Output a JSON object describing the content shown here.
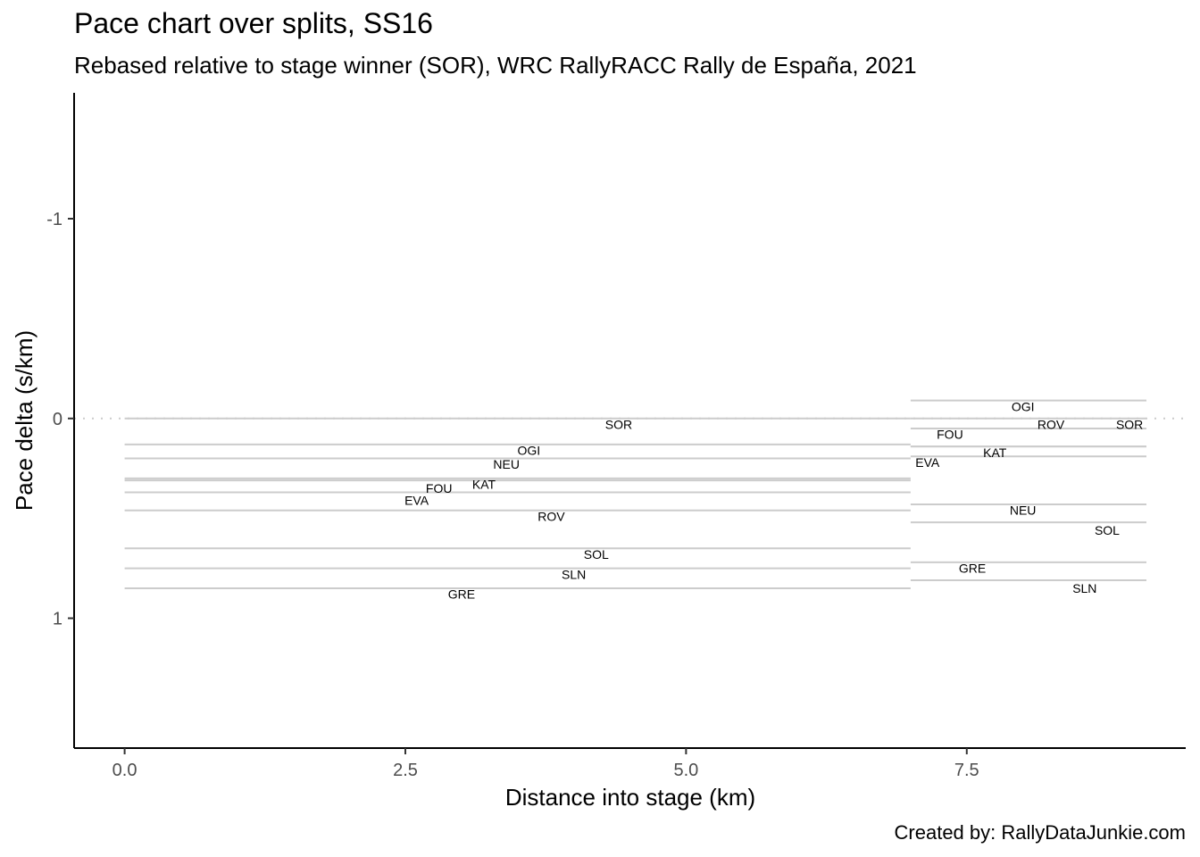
{
  "chart_data": {
    "type": "line",
    "title": "Pace chart over splits, SS16",
    "subtitle": "Rebased relative to stage winner (SOR), WRC RallyRACC Rally de España, 2021",
    "caption": "Created by: RallyDataJunkie.com",
    "xlabel": "Distance into stage (km)",
    "ylabel": "Pace delta (s/km)",
    "xlim": [
      -0.45,
      9.45
    ],
    "ylim": [
      1.65,
      -1.63
    ],
    "y_reversed": true,
    "x_ticks": [
      0,
      2.5,
      5,
      7.5
    ],
    "x_tick_labels": [
      "0.0",
      "2.5",
      "5.0",
      "7.5"
    ],
    "y_ticks": [
      -1,
      0,
      1
    ],
    "y_tick_labels": [
      "-1",
      "0",
      "1"
    ],
    "reference_line": {
      "y": 0,
      "style": "dotted"
    },
    "grid": false,
    "segments": [
      {
        "driver": "SOR",
        "x": [
          0.0,
          7.0
        ],
        "y": 0.0,
        "label_x": 4.4,
        "label_y": 0.03
      },
      {
        "driver": "OGI",
        "x": [
          0.0,
          7.0
        ],
        "y": 0.13,
        "label_x": 3.6,
        "label_y": 0.16
      },
      {
        "driver": "NEU",
        "x": [
          0.0,
          7.0
        ],
        "y": 0.2,
        "label_x": 3.4,
        "label_y": 0.23
      },
      {
        "driver": "KAT",
        "x": [
          0.0,
          7.0
        ],
        "y": 0.3,
        "label_x": 3.2,
        "label_y": 0.33
      },
      {
        "driver": "FOU",
        "x": [
          0.0,
          7.0
        ],
        "y": 0.31,
        "label_x": 2.8,
        "label_y": 0.35
      },
      {
        "driver": "EVA",
        "x": [
          0.0,
          7.0
        ],
        "y": 0.37,
        "label_x": 2.6,
        "label_y": 0.41
      },
      {
        "driver": "ROV",
        "x": [
          0.0,
          7.0
        ],
        "y": 0.46,
        "label_x": 3.8,
        "label_y": 0.49
      },
      {
        "driver": "SOL",
        "x": [
          0.0,
          7.0
        ],
        "y": 0.65,
        "label_x": 4.2,
        "label_y": 0.68
      },
      {
        "driver": "SLN",
        "x": [
          0.0,
          7.0
        ],
        "y": 0.75,
        "label_x": 4.0,
        "label_y": 0.78
      },
      {
        "driver": "GRE",
        "x": [
          0.0,
          7.0
        ],
        "y": 0.85,
        "label_x": 3.0,
        "label_y": 0.88
      },
      {
        "driver": "OGI",
        "x": [
          7.0,
          9.1
        ],
        "y": -0.09,
        "label_x": 8.0,
        "label_y": -0.06
      },
      {
        "driver": "SOR",
        "x": [
          7.0,
          9.1
        ],
        "y": 0.0,
        "label_x": 8.95,
        "label_y": 0.03
      },
      {
        "driver": "ROV",
        "x": [
          7.0,
          9.1
        ],
        "y": 0.05,
        "label_x": 8.25,
        "label_y": 0.03
      },
      {
        "driver": "FOU",
        "x": [
          7.0,
          9.1
        ],
        "y": 0.14,
        "label_x": 7.35,
        "label_y": 0.08
      },
      {
        "driver": "KAT",
        "x": [
          7.0,
          9.1
        ],
        "y": 0.19,
        "label_x": 7.75,
        "label_y": 0.17
      },
      {
        "driver": "EVA",
        "x": [
          7.0,
          9.1
        ],
        "y": 0.14,
        "label_x": 7.15,
        "label_y": 0.22
      },
      {
        "driver": "NEU",
        "x": [
          7.0,
          9.1
        ],
        "y": 0.43,
        "label_x": 8.0,
        "label_y": 0.46
      },
      {
        "driver": "SOL",
        "x": [
          7.0,
          9.1
        ],
        "y": 0.52,
        "label_x": 8.75,
        "label_y": 0.56
      },
      {
        "driver": "GRE",
        "x": [
          7.0,
          9.1
        ],
        "y": 0.72,
        "label_x": 7.55,
        "label_y": 0.75
      },
      {
        "driver": "SLN",
        "x": [
          7.0,
          9.1
        ],
        "y": 0.81,
        "label_x": 8.55,
        "label_y": 0.85
      }
    ],
    "line_color": "#cccccc",
    "reference_color": "#cccccc"
  }
}
